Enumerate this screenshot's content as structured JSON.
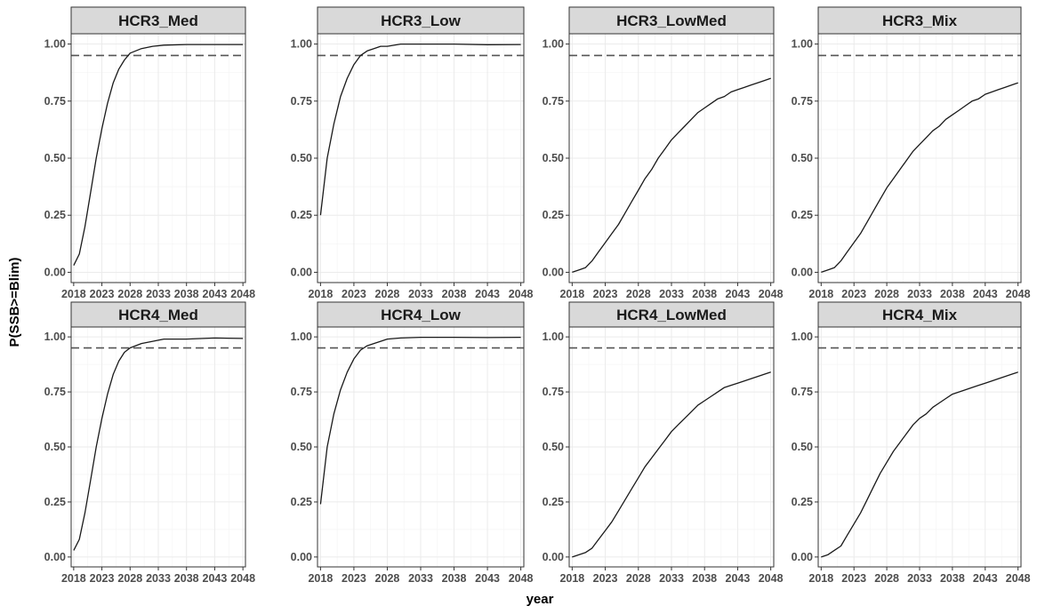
{
  "chart_data": {
    "type": "line",
    "layout": "facet-grid",
    "xlabel": "year",
    "ylabel": "P(SSB>=Blim)",
    "xlim": [
      2018,
      2048
    ],
    "ylim": [
      0,
      1
    ],
    "x_ticks": [
      2018,
      2023,
      2028,
      2033,
      2038,
      2043,
      2048
    ],
    "y_ticks": [
      0,
      0.25,
      0.5,
      0.75,
      1
    ],
    "y_tick_labels": [
      "0.00",
      "0.25",
      "0.50",
      "0.75",
      "1.00"
    ],
    "reference_line": {
      "y": 0.95,
      "style": "dashed",
      "color": "#555555"
    },
    "grid": true,
    "colors": {
      "line": "#1a1a1a",
      "strip_fill": "#d9d9d9",
      "panel_border": "#333333",
      "grid": "#ebebeb"
    },
    "panels": [
      {
        "title": "HCR3_Med",
        "x": [
          2018,
          2019,
          2020,
          2021,
          2022,
          2023,
          2024,
          2025,
          2026,
          2027,
          2028,
          2030,
          2032,
          2034,
          2038,
          2043,
          2048
        ],
        "y": [
          0.03,
          0.08,
          0.2,
          0.35,
          0.5,
          0.63,
          0.74,
          0.83,
          0.89,
          0.93,
          0.96,
          0.98,
          0.99,
          0.995,
          0.998,
          0.998,
          0.998
        ]
      },
      {
        "title": "HCR3_Low",
        "x": [
          2018,
          2019,
          2020,
          2021,
          2022,
          2023,
          2024,
          2025,
          2026,
          2027,
          2028,
          2030,
          2033,
          2038,
          2043,
          2048
        ],
        "y": [
          0.25,
          0.5,
          0.65,
          0.77,
          0.85,
          0.91,
          0.95,
          0.97,
          0.98,
          0.99,
          0.99,
          1.0,
          1.0,
          1.0,
          0.997,
          0.998
        ]
      },
      {
        "title": "HCR3_LowMed",
        "x": [
          2018,
          2019,
          2020,
          2021,
          2022,
          2023,
          2024,
          2025,
          2026,
          2027,
          2028,
          2029,
          2030,
          2031,
          2032,
          2033,
          2034,
          2035,
          2036,
          2037,
          2038,
          2039,
          2040,
          2041,
          2042,
          2043,
          2044,
          2045,
          2046,
          2047,
          2048
        ],
        "y": [
          0.0,
          0.01,
          0.02,
          0.05,
          0.09,
          0.13,
          0.17,
          0.21,
          0.26,
          0.31,
          0.36,
          0.41,
          0.45,
          0.5,
          0.54,
          0.58,
          0.61,
          0.64,
          0.67,
          0.7,
          0.72,
          0.74,
          0.76,
          0.77,
          0.79,
          0.8,
          0.81,
          0.82,
          0.83,
          0.84,
          0.85
        ]
      },
      {
        "title": "HCR3_Mix",
        "x": [
          2018,
          2019,
          2020,
          2021,
          2022,
          2023,
          2024,
          2025,
          2026,
          2027,
          2028,
          2029,
          2030,
          2031,
          2032,
          2033,
          2034,
          2035,
          2036,
          2037,
          2038,
          2039,
          2040,
          2041,
          2042,
          2043,
          2044,
          2045,
          2046,
          2047,
          2048
        ],
        "y": [
          0.0,
          0.01,
          0.02,
          0.05,
          0.09,
          0.13,
          0.17,
          0.22,
          0.27,
          0.32,
          0.37,
          0.41,
          0.45,
          0.49,
          0.53,
          0.56,
          0.59,
          0.62,
          0.64,
          0.67,
          0.69,
          0.71,
          0.73,
          0.75,
          0.76,
          0.78,
          0.79,
          0.8,
          0.81,
          0.82,
          0.83
        ]
      },
      {
        "title": "HCR4_Med",
        "x": [
          2018,
          2019,
          2020,
          2021,
          2022,
          2023,
          2024,
          2025,
          2026,
          2027,
          2028,
          2030,
          2032,
          2034,
          2038,
          2043,
          2048
        ],
        "y": [
          0.03,
          0.08,
          0.2,
          0.35,
          0.5,
          0.63,
          0.74,
          0.83,
          0.89,
          0.93,
          0.95,
          0.97,
          0.98,
          0.99,
          0.99,
          0.995,
          0.993
        ]
      },
      {
        "title": "HCR4_Low",
        "x": [
          2018,
          2019,
          2020,
          2021,
          2022,
          2023,
          2024,
          2025,
          2026,
          2027,
          2028,
          2030,
          2033,
          2038,
          2043,
          2048
        ],
        "y": [
          0.24,
          0.5,
          0.65,
          0.76,
          0.84,
          0.9,
          0.94,
          0.96,
          0.97,
          0.98,
          0.99,
          0.995,
          0.998,
          0.998,
          0.997,
          0.998
        ]
      },
      {
        "title": "HCR4_LowMed",
        "x": [
          2018,
          2019,
          2020,
          2021,
          2022,
          2023,
          2024,
          2025,
          2026,
          2027,
          2028,
          2029,
          2030,
          2031,
          2032,
          2033,
          2034,
          2035,
          2036,
          2037,
          2038,
          2039,
          2040,
          2041,
          2042,
          2043,
          2044,
          2045,
          2046,
          2047,
          2048
        ],
        "y": [
          0.0,
          0.01,
          0.02,
          0.04,
          0.08,
          0.12,
          0.16,
          0.21,
          0.26,
          0.31,
          0.36,
          0.41,
          0.45,
          0.49,
          0.53,
          0.57,
          0.6,
          0.63,
          0.66,
          0.69,
          0.71,
          0.73,
          0.75,
          0.77,
          0.78,
          0.79,
          0.8,
          0.81,
          0.82,
          0.83,
          0.84
        ]
      },
      {
        "title": "HCR4_Mix",
        "x": [
          2018,
          2019,
          2020,
          2021,
          2022,
          2023,
          2024,
          2025,
          2026,
          2027,
          2028,
          2029,
          2030,
          2031,
          2032,
          2033,
          2034,
          2035,
          2036,
          2037,
          2038,
          2039,
          2040,
          2041,
          2042,
          2043,
          2044,
          2045,
          2046,
          2047,
          2048
        ],
        "y": [
          0.0,
          0.01,
          0.03,
          0.05,
          0.1,
          0.15,
          0.2,
          0.26,
          0.32,
          0.38,
          0.43,
          0.48,
          0.52,
          0.56,
          0.6,
          0.63,
          0.65,
          0.68,
          0.7,
          0.72,
          0.74,
          0.75,
          0.76,
          0.77,
          0.78,
          0.79,
          0.8,
          0.81,
          0.82,
          0.83,
          0.84
        ]
      }
    ]
  }
}
